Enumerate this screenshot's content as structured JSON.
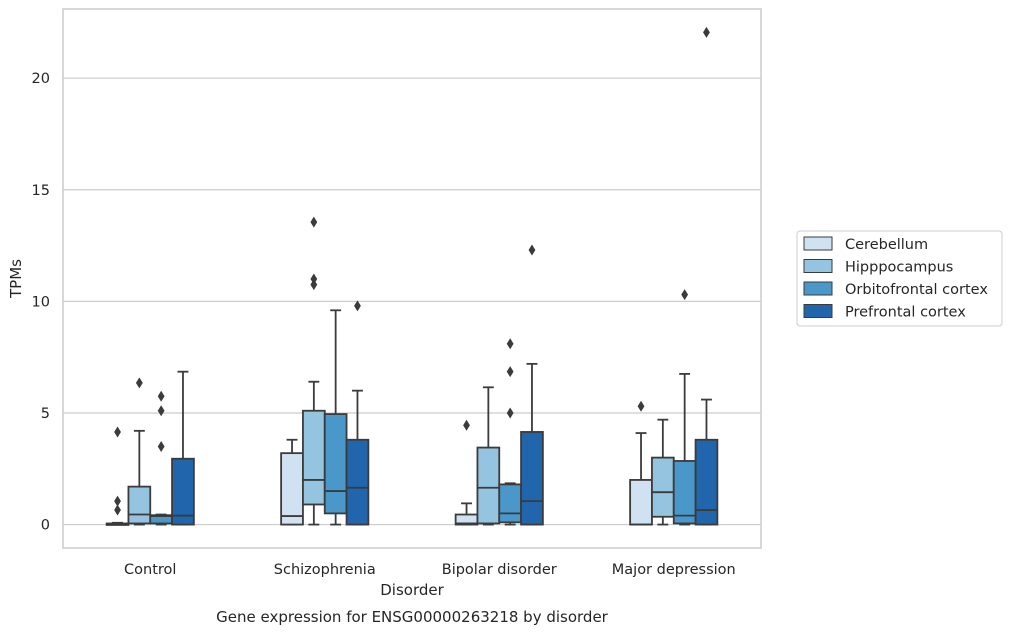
{
  "chart_data": {
    "type": "box",
    "title": "Gene expression for ENSG00000263218 by disorder",
    "xlabel": "Disorder",
    "ylabel": "TPMs",
    "ylim": [
      -1.05,
      23.1
    ],
    "yticks": [
      0,
      5,
      10,
      15,
      20
    ],
    "grid": "horizontal",
    "legend_position": "right",
    "categories": [
      "Control",
      "Schizophrenia",
      "Bipolar disorder",
      "Major depression"
    ],
    "series": [
      {
        "name": "Cerebellum",
        "color": "#d0e1f2",
        "boxes": [
          {
            "whisker_low": 0,
            "q1": 0,
            "median": 0.02,
            "q3": 0.05,
            "whisker_high": 0.08,
            "outliers": [
              4.15,
              1.05,
              0.65
            ]
          },
          {
            "whisker_low": 0,
            "q1": 0,
            "median": 0.38,
            "q3": 3.2,
            "whisker_high": 3.8,
            "outliers": []
          },
          {
            "whisker_low": 0,
            "q1": 0,
            "median": 0.05,
            "q3": 0.45,
            "whisker_high": 0.95,
            "outliers": [
              4.45
            ]
          },
          {
            "whisker_low": 0,
            "q1": 0,
            "median": 0.0,
            "q3": 2.0,
            "whisker_high": 4.1,
            "outliers": [
              5.3
            ]
          }
        ]
      },
      {
        "name": "Hipppocampus",
        "color": "#94c4df",
        "boxes": [
          {
            "whisker_low": 0,
            "q1": 0.05,
            "median": 0.45,
            "q3": 1.7,
            "whisker_high": 4.2,
            "outliers": [
              6.35
            ]
          },
          {
            "whisker_low": 0,
            "q1": 0.9,
            "median": 2.0,
            "q3": 5.1,
            "whisker_high": 6.4,
            "outliers": [
              13.55,
              11.0,
              10.75
            ]
          },
          {
            "whisker_low": 0,
            "q1": 0.05,
            "median": 1.65,
            "q3": 3.45,
            "whisker_high": 6.15,
            "outliers": []
          },
          {
            "whisker_low": 0,
            "q1": 0.35,
            "median": 1.45,
            "q3": 3.0,
            "whisker_high": 4.7,
            "outliers": []
          }
        ]
      },
      {
        "name": "Orbitofrontal cortex",
        "color": "#4a98c9",
        "boxes": [
          {
            "whisker_low": 0,
            "q1": 0.05,
            "median": 0.38,
            "q3": 0.42,
            "whisker_high": 0.45,
            "outliers": [
              5.75,
              5.1,
              3.5
            ]
          },
          {
            "whisker_low": 0,
            "q1": 0.5,
            "median": 1.5,
            "q3": 4.95,
            "whisker_high": 9.6,
            "outliers": []
          },
          {
            "whisker_low": 0,
            "q1": 0.1,
            "median": 0.5,
            "q3": 1.8,
            "whisker_high": 1.85,
            "outliers": [
              8.1,
              6.85,
              5.0
            ]
          },
          {
            "whisker_low": 0,
            "q1": 0.05,
            "median": 0.4,
            "q3": 2.85,
            "whisker_high": 6.75,
            "outliers": [
              10.3
            ]
          }
        ]
      },
      {
        "name": "Prefrontal cortex",
        "color": "#2166ac",
        "boxes": [
          {
            "whisker_low": 0,
            "q1": 0,
            "median": 0.4,
            "q3": 2.95,
            "whisker_high": 6.85,
            "outliers": []
          },
          {
            "whisker_low": 0,
            "q1": 0,
            "median": 1.65,
            "q3": 3.8,
            "whisker_high": 6.0,
            "outliers": [
              9.8
            ]
          },
          {
            "whisker_low": 0,
            "q1": 0,
            "median": 1.05,
            "q3": 4.15,
            "whisker_high": 7.2,
            "outliers": [
              12.3
            ]
          },
          {
            "whisker_low": 0,
            "q1": 0,
            "median": 0.65,
            "q3": 3.8,
            "whisker_high": 5.6,
            "outliers": [
              22.05
            ]
          }
        ]
      }
    ]
  }
}
